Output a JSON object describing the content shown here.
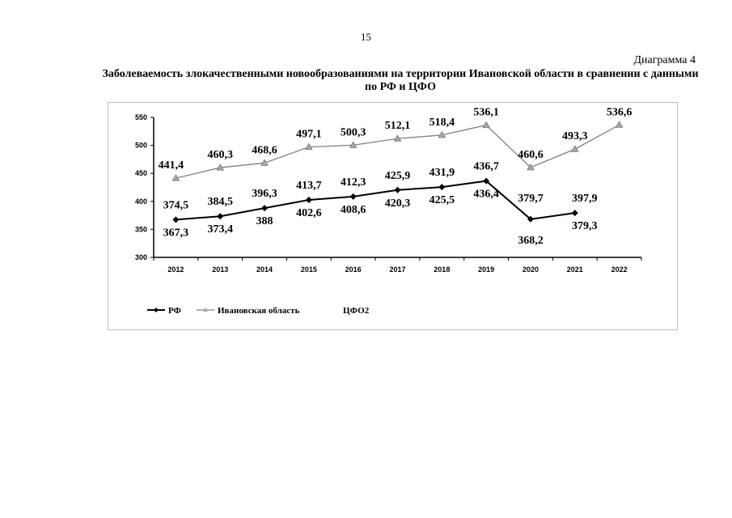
{
  "page_number": "15",
  "diagram_label": "Диаграмма 4",
  "title": "Заболеваемость злокачественными новообразованиями на территории Ивановской области в сравнении с данными по РФ и ЦФО",
  "chart_data": {
    "type": "line",
    "title": "Заболеваемость злокачественными новообразованиями на территории Ивановской области в сравнении с данными по РФ и ЦФО",
    "xlabel": "",
    "ylabel": "",
    "ylim": [
      300,
      550
    ],
    "yticks": [
      "300",
      "350",
      "400",
      "450",
      "500",
      "550"
    ],
    "categories": [
      "2012",
      "2013",
      "2014",
      "2015",
      "2016",
      "2017",
      "2018",
      "2019",
      "2020",
      "2021",
      "2022"
    ],
    "legend_position": "bottom-left",
    "series": [
      {
        "name": "РФ",
        "color": "#000000",
        "marker": "diamond",
        "values": [
          367.3,
          373.4,
          388,
          402.6,
          408.6,
          420.3,
          425.5,
          436.4,
          368.2,
          379.3,
          null
        ],
        "labels": [
          "367,3",
          "373,4",
          "388",
          "402,6",
          "408,6",
          "420,3",
          "425,5",
          "436,4",
          "368,2",
          "379,3",
          null
        ]
      },
      {
        "name": "Ивановская область",
        "color": "#808080",
        "marker": "triangle",
        "values": [
          441.4,
          460.3,
          468.6,
          497.1,
          500.3,
          512.1,
          518.4,
          536.1,
          460.6,
          493.3,
          536.6
        ],
        "labels": [
          "441,4",
          "460,3",
          "468,6",
          "497,1",
          "500,3",
          "512,1",
          "518,4",
          "536,1",
          "460,6",
          "493,3",
          "536,6"
        ]
      },
      {
        "name": "ЦФО2",
        "color": "none",
        "marker": "none",
        "values": [
          374.5,
          384.5,
          396.3,
          413.7,
          412.3,
          425.9,
          431.9,
          436.7,
          379.7,
          397.9,
          null
        ],
        "labels": [
          "374,5",
          "384,5",
          "396,3",
          "413,7",
          "412,3",
          "425,9",
          "431,9",
          "436,7",
          "379,7",
          "397,9",
          null
        ]
      }
    ]
  }
}
